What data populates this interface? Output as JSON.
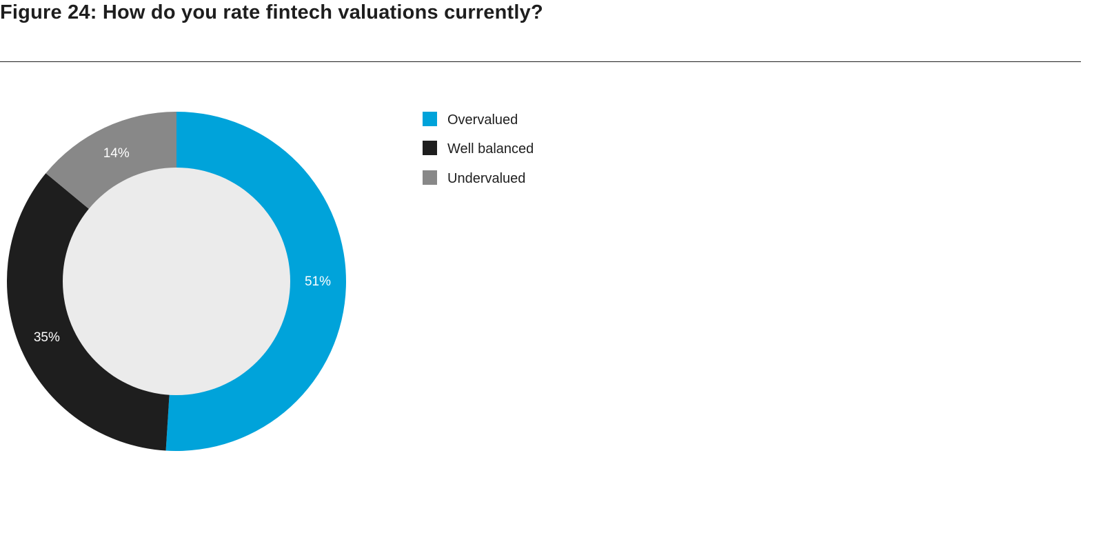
{
  "title": "Figure 24: How do you rate fintech valuations currently?",
  "chart_data": {
    "type": "pie",
    "title": "Figure 24: How do you rate fintech valuations currently?",
    "categories": [
      "Overvalued",
      "Well balanced",
      "Undervalued"
    ],
    "values": [
      51,
      35,
      14
    ],
    "value_labels": [
      "51%",
      "35%",
      "14%"
    ],
    "unit": "%",
    "colors": [
      "#00a3da",
      "#1e1e1e",
      "#888888"
    ],
    "hole_color": "#ebebeb",
    "legend": {
      "placement": "right",
      "items": [
        {
          "label": "Overvalued",
          "color": "#00a3da"
        },
        {
          "label": "Well balanced",
          "color": "#1e1e1e"
        },
        {
          "label": "Undervalued",
          "color": "#888888"
        }
      ]
    }
  }
}
